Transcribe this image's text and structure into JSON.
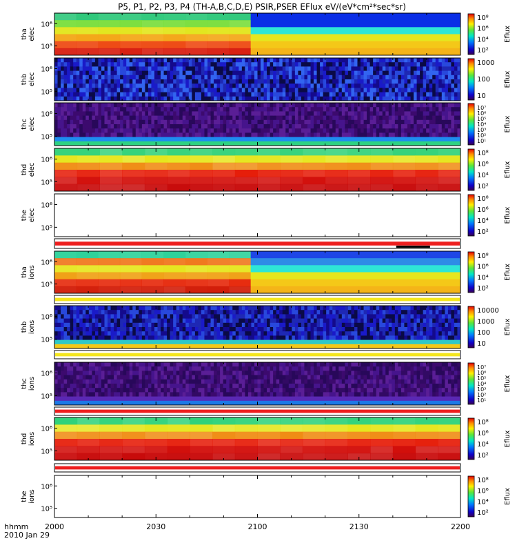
{
  "title": "P5, P1, P2, P3, P4 (TH-A,B,C,D,E) PSIR,PSER EFlux eV/(eV*cm²*sec*sr)",
  "time_axis": {
    "label_line1": "hhmm",
    "label_line2": "2010 Jan 29",
    "ticks": [
      "2000",
      "2030",
      "2100",
      "2130",
      "2200"
    ]
  },
  "chart_data": [
    {
      "type": "heatmap",
      "name": "tha_elec",
      "ylabel": [
        "tha",
        "elec"
      ],
      "yticks": [
        "10⁶",
        "10⁵"
      ],
      "colorbar": {
        "label": "Eflux",
        "ticks": [
          "10⁸",
          "10⁶",
          "10⁴",
          "10²"
        ]
      },
      "pattern": "split",
      "split_at": "2058",
      "before": [
        "#2ec87a",
        "#7ade3c",
        "#e2e61e",
        "#f4a618",
        "#ee4a14",
        "#d81e10"
      ],
      "after": [
        "#0a2ee6",
        "#0a2ee6",
        "#2ee6d6",
        "#e6e61e",
        "#f4c818",
        "#f4b418"
      ]
    },
    {
      "type": "heatmap",
      "name": "thb_elec",
      "ylabel": [
        "thb",
        "elec"
      ],
      "yticks": [
        "10⁶",
        "10⁵"
      ],
      "colorbar": {
        "label": "Eflux",
        "ticks": [
          "1000",
          "100",
          "10"
        ]
      },
      "pattern": "noise",
      "palette": [
        "#140a8c",
        "#1e28b4",
        "#2848dc",
        "#0a0a46",
        "#3264f0",
        "#1a1ac8"
      ]
    },
    {
      "type": "heatmap",
      "name": "thc_elec",
      "ylabel": [
        "thc",
        "elec"
      ],
      "yticks": [
        "10⁶",
        "10⁵"
      ],
      "colorbar": {
        "label": "Eflux",
        "ticks": [
          "10⁷",
          "10⁶",
          "10⁵",
          "10⁴",
          "10³",
          "10²",
          "10¹"
        ]
      },
      "pattern": "noise_band",
      "palette": [
        "#3c0a6e",
        "#5a1e96",
        "#28085a",
        "#46148c"
      ],
      "band": [
        "#1e8cf0",
        "#2ed282"
      ]
    },
    {
      "type": "heatmap",
      "name": "thd_elec",
      "ylabel": [
        "thd",
        "elec"
      ],
      "yticks": [
        "10⁶",
        "10⁵"
      ],
      "colorbar": {
        "label": "Eflux",
        "ticks": [
          "10⁸",
          "10⁶",
          "10⁴",
          "10²"
        ]
      },
      "pattern": "gradient",
      "rows": [
        "#34d27a",
        "#e6e61e",
        "#f08c14",
        "#e61e0a",
        "#d20e0a",
        "#c80a0a"
      ]
    },
    {
      "type": "heatmap",
      "name": "the_elec",
      "ylabel": [
        "the",
        "elec"
      ],
      "yticks": [
        "10⁶",
        "10⁵"
      ],
      "colorbar": {
        "label": "Eflux",
        "ticks": [
          "10⁸",
          "10⁶",
          "10⁴",
          "10²"
        ]
      },
      "pattern": "empty"
    },
    {
      "type": "bar",
      "name": "strip_1",
      "pattern": "strip",
      "color": "#ee1e1e",
      "marker": {
        "from": "2141",
        "to": "2151"
      }
    },
    {
      "type": "heatmap",
      "name": "tha_ions",
      "ylabel": [
        "tha",
        "ions"
      ],
      "yticks": [
        "10⁶",
        "10⁵"
      ],
      "colorbar": {
        "label": "Eflux",
        "ticks": [
          "10⁸",
          "10⁶",
          "10⁴",
          "10²"
        ]
      },
      "pattern": "split",
      "split_at": "2058",
      "before": [
        "#2ed29a",
        "#f0781e",
        "#e6e61e",
        "#f0a014",
        "#e6280a",
        "#d21e0a"
      ],
      "after": [
        "#1e46e6",
        "#2e8ce6",
        "#2ee6d6",
        "#e6e61e",
        "#f4c818",
        "#f4b418"
      ]
    },
    {
      "type": "bar",
      "name": "strip_2",
      "pattern": "strip",
      "color": "#f4e61e"
    },
    {
      "type": "heatmap",
      "name": "thb_ions",
      "ylabel": [
        "thb",
        "ions"
      ],
      "yticks": [
        "10⁶",
        "10⁵"
      ],
      "colorbar": {
        "label": "Eflux",
        "ticks": [
          "10000",
          "1000",
          "100",
          "10"
        ]
      },
      "pattern": "noise_band",
      "palette": [
        "#140a8c",
        "#1e28b4",
        "#0a0a46",
        "#2848dc",
        "#1a1ac8"
      ],
      "band": [
        "#2ec8c8",
        "#f4c818"
      ]
    },
    {
      "type": "bar",
      "name": "strip_3",
      "pattern": "strip",
      "color": "#f4e61e"
    },
    {
      "type": "heatmap",
      "name": "thc_ions",
      "ylabel": [
        "thc",
        "ions"
      ],
      "yticks": [
        "10⁶",
        "10⁵"
      ],
      "colorbar": {
        "label": "Eflux",
        "ticks": [
          "10⁷",
          "10⁶",
          "10⁵",
          "10⁴",
          "10³",
          "10²",
          "10¹"
        ]
      },
      "pattern": "noise_band",
      "palette": [
        "#3c0a6e",
        "#5a1e96",
        "#28085a",
        "#46148c",
        "#320a64"
      ],
      "band": [
        "#5a28b4",
        "#1e78e6"
      ]
    },
    {
      "type": "bar",
      "name": "strip_4",
      "pattern": "strip",
      "color": "#ee1e1e"
    },
    {
      "type": "heatmap",
      "name": "thd_ions",
      "ylabel": [
        "thd",
        "ions"
      ],
      "yticks": [
        "10⁶",
        "10⁵"
      ],
      "colorbar": {
        "label": "Eflux",
        "ticks": [
          "10⁸",
          "10⁶",
          "10⁴",
          "10²"
        ]
      },
      "pattern": "gradient",
      "rows": [
        "#2ed27a",
        "#e6e61e",
        "#f08c14",
        "#e61e0a",
        "#d20e0a",
        "#c80a0a"
      ]
    },
    {
      "type": "bar",
      "name": "strip_5",
      "pattern": "strip",
      "color": "#ee1e1e"
    },
    {
      "type": "heatmap",
      "name": "the_ions",
      "ylabel": [
        "the",
        "ions"
      ],
      "yticks": [
        "10⁶",
        "10⁵"
      ],
      "colorbar": {
        "label": "Eflux",
        "ticks": [
          "10⁸",
          "10⁶",
          "10⁴",
          "10²"
        ]
      },
      "pattern": "empty"
    }
  ]
}
